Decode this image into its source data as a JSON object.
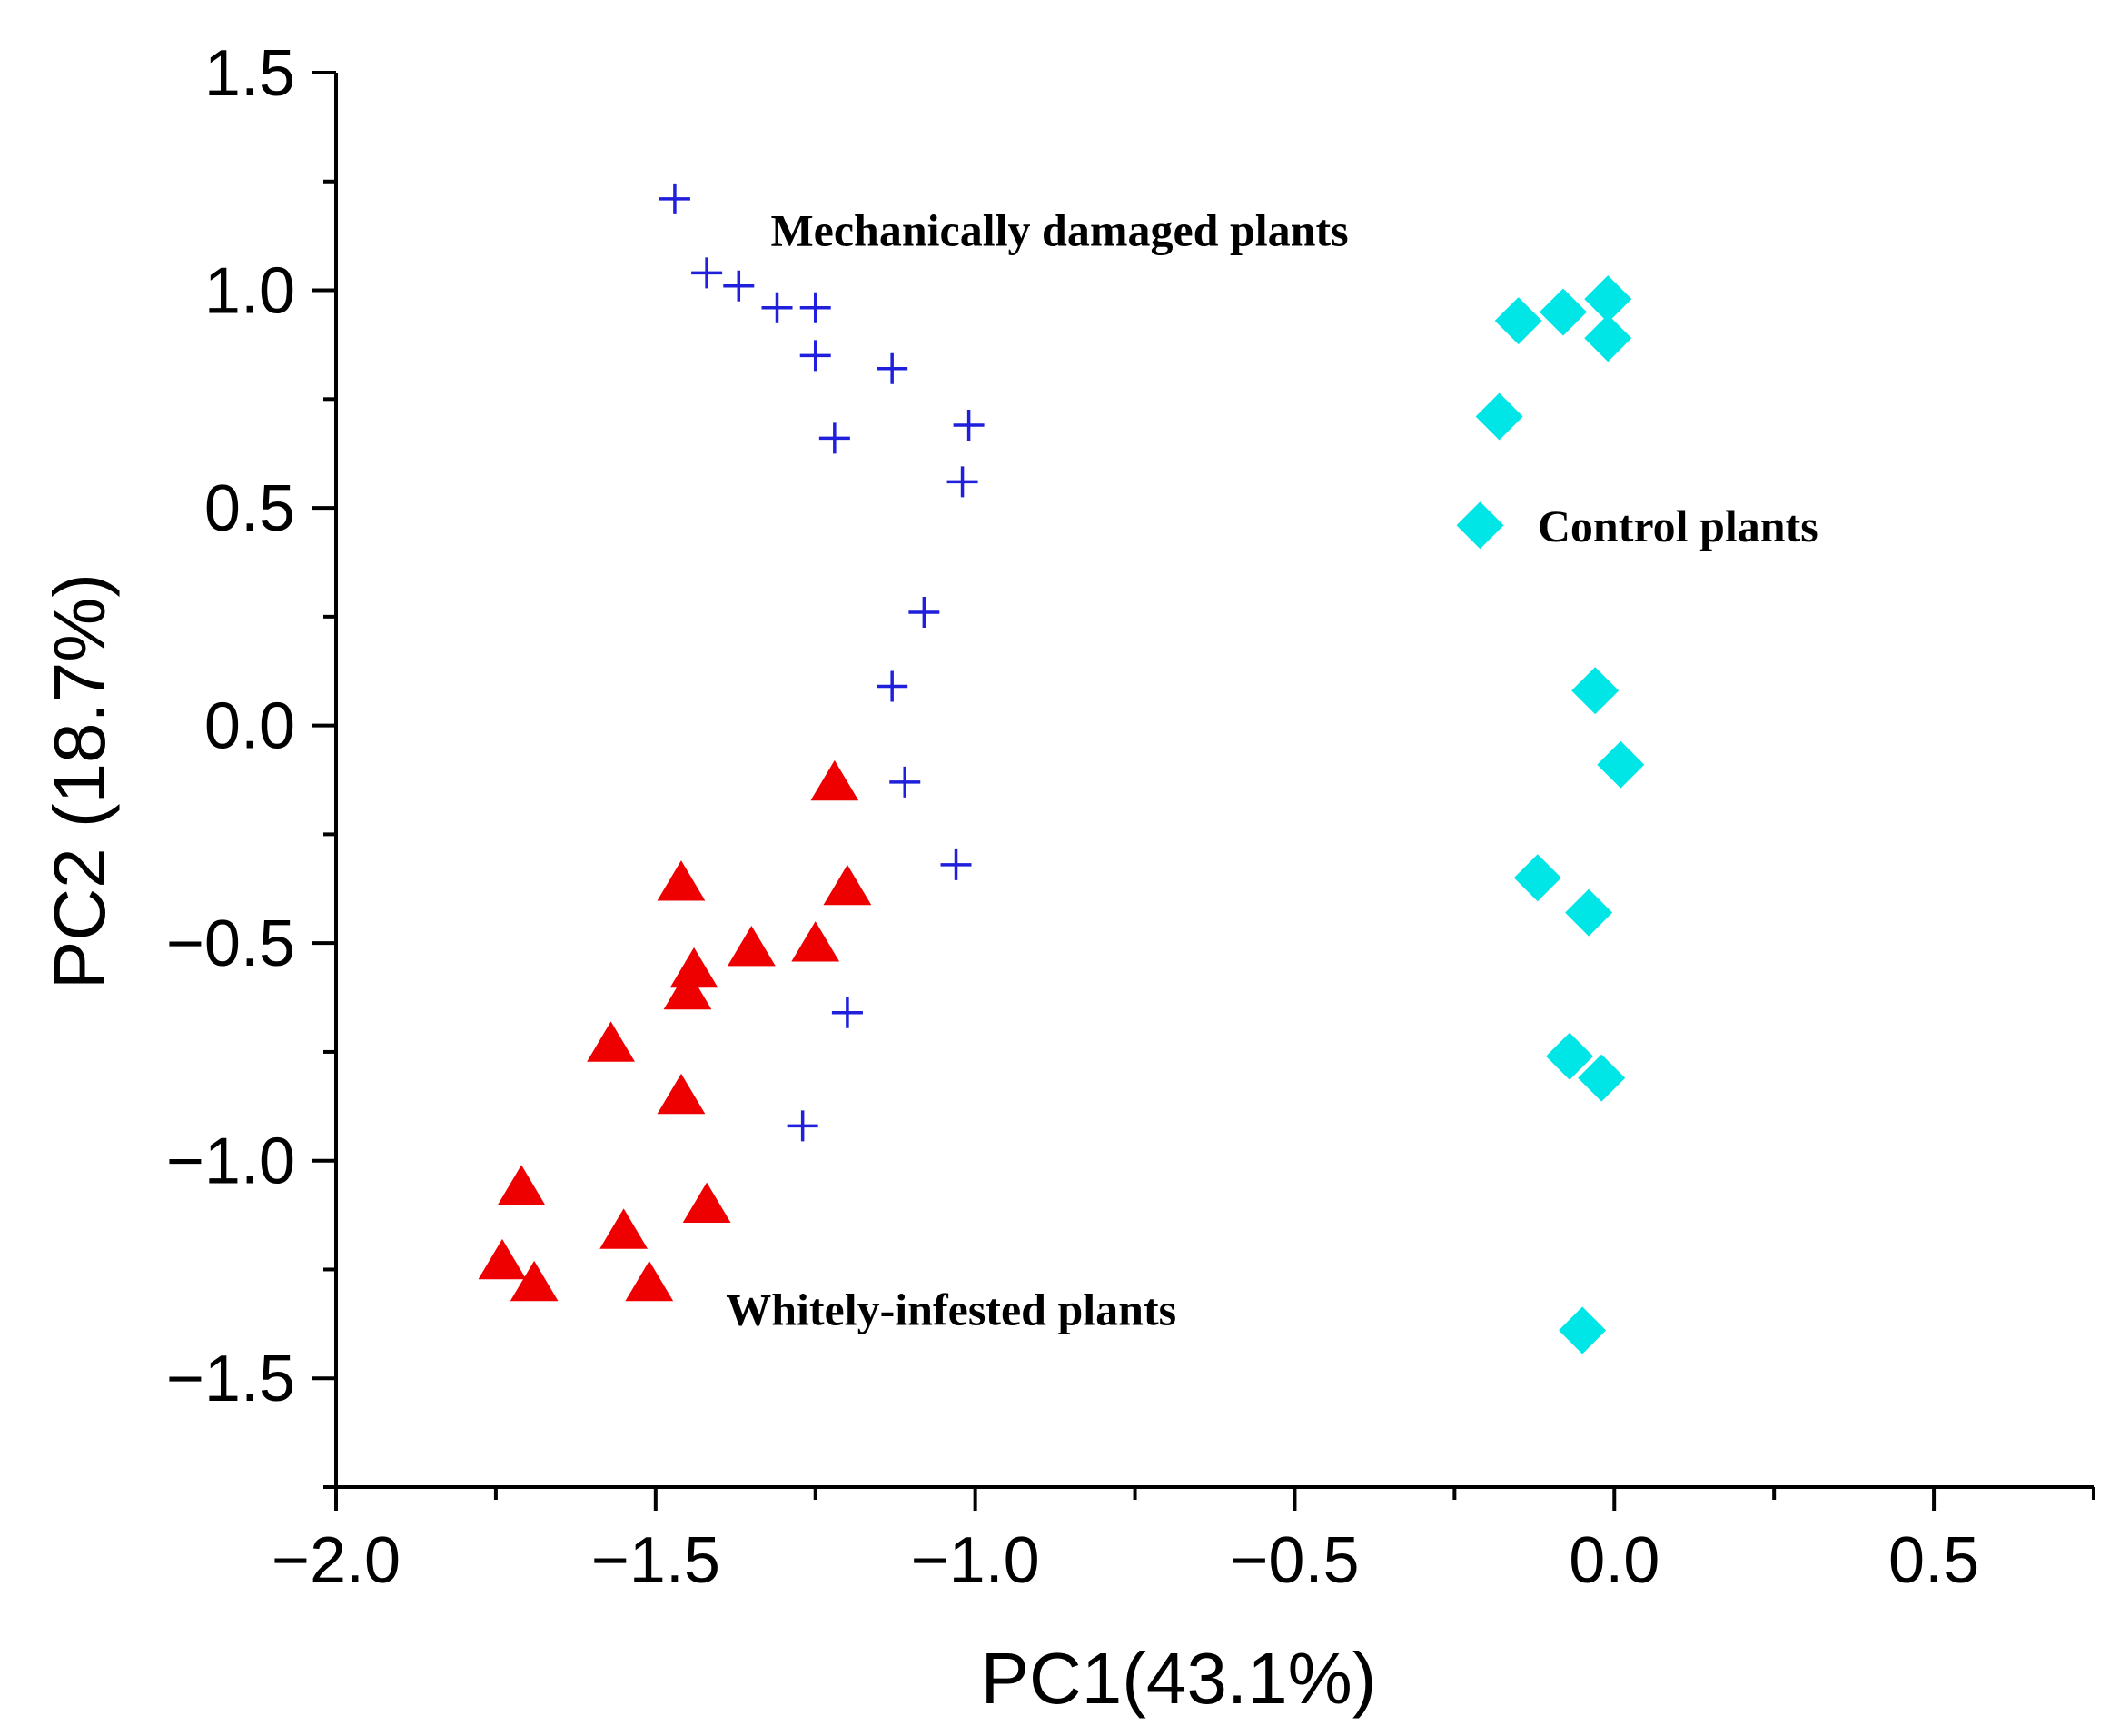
{
  "chart_data": {
    "type": "scatter",
    "title": "",
    "xlabel": "PC1(43.1%)",
    "ylabel": "PC2 (18.7%)",
    "xlim": [
      -2.0,
      0.75
    ],
    "ylim": [
      -1.75,
      1.5
    ],
    "x_ticks": [
      -2.0,
      -1.5,
      -1.0,
      -0.5,
      0.0,
      0.5
    ],
    "x_tick_labels": [
      "−2.0",
      "−1.5",
      "−1.0",
      "−0.5",
      "0.0",
      "0.5"
    ],
    "y_ticks": [
      1.5,
      1.0,
      0.5,
      0.0,
      -0.5,
      -1.0,
      -1.5
    ],
    "y_tick_labels": [
      "1.5",
      "1.0",
      "0.5",
      "0.0",
      "−0.5",
      "−1.0",
      "−1.5"
    ],
    "grid": false,
    "series": [
      {
        "name": "Mechanically damaged plants",
        "marker": "plus",
        "color": "#1f1fdc",
        "x": [
          -1.47,
          -1.42,
          -1.37,
          -1.31,
          -1.25,
          -1.25,
          -1.13,
          -1.22,
          -1.01,
          -1.02,
          -1.08,
          -1.13,
          -1.11,
          -1.03,
          -1.2,
          -1.27
        ],
        "y": [
          1.21,
          1.04,
          1.01,
          0.96,
          0.96,
          0.85,
          0.82,
          0.66,
          0.69,
          0.56,
          0.26,
          0.09,
          -0.13,
          -0.32,
          -0.66,
          -0.92
        ]
      },
      {
        "name": "Control plants",
        "marker": "diamond",
        "color": "#00e5e5",
        "x": [
          -0.01,
          -0.08,
          -0.15,
          -0.01,
          -0.18,
          -0.21,
          -0.03,
          0.01,
          -0.12,
          -0.04,
          -0.07,
          -0.02,
          -0.05
        ],
        "y": [
          0.98,
          0.95,
          0.93,
          0.89,
          0.71,
          0.46,
          0.08,
          -0.09,
          -0.35,
          -0.43,
          -0.76,
          -0.81,
          -1.39
        ]
      },
      {
        "name": "Whitely-infested plants",
        "marker": "triangle",
        "color": "#ee0000",
        "x": [
          -1.22,
          -1.46,
          -1.2,
          -1.35,
          -1.25,
          -1.44,
          -1.45,
          -1.57,
          -1.46,
          -1.71,
          -1.42,
          -1.55,
          -1.74,
          -1.69,
          -1.51
        ],
        "y": [
          -0.13,
          -0.36,
          -0.37,
          -0.51,
          -0.5,
          -0.56,
          -0.61,
          -0.73,
          -0.85,
          -1.06,
          -1.1,
          -1.16,
          -1.23,
          -1.28,
          -1.28
        ]
      }
    ],
    "annotations": [
      {
        "text": "Mechanically damaged plants",
        "x": -1.32,
        "y": 1.14
      },
      {
        "text": "Control plants",
        "x": -0.12,
        "y": 0.46
      },
      {
        "text": "Whitely-infested plants",
        "x": -1.39,
        "y": -1.34
      }
    ]
  }
}
